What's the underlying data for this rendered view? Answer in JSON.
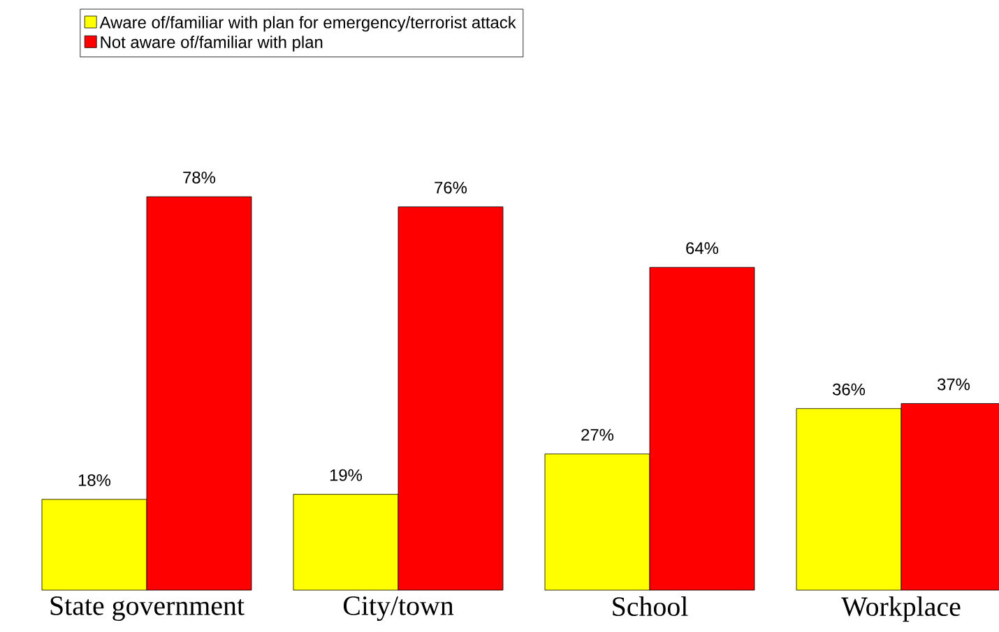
{
  "chart_data": {
    "type": "bar",
    "categories": [
      "State government",
      "City/town",
      "School",
      "Workplace"
    ],
    "series": [
      {
        "name": "Aware of/familiar with plan for emergency/terrorist attack",
        "color": "#ffff00",
        "values": [
          18,
          19,
          27,
          36
        ],
        "value_labels": [
          "18%",
          "19%",
          "27%",
          "36%"
        ]
      },
      {
        "name": "Not aware of/familiar with plan",
        "color": "#ff0000",
        "values": [
          78,
          76,
          64,
          37
        ],
        "value_labels": [
          "78%",
          "76%",
          "64%",
          "37%"
        ]
      }
    ],
    "legend": "top"
  }
}
